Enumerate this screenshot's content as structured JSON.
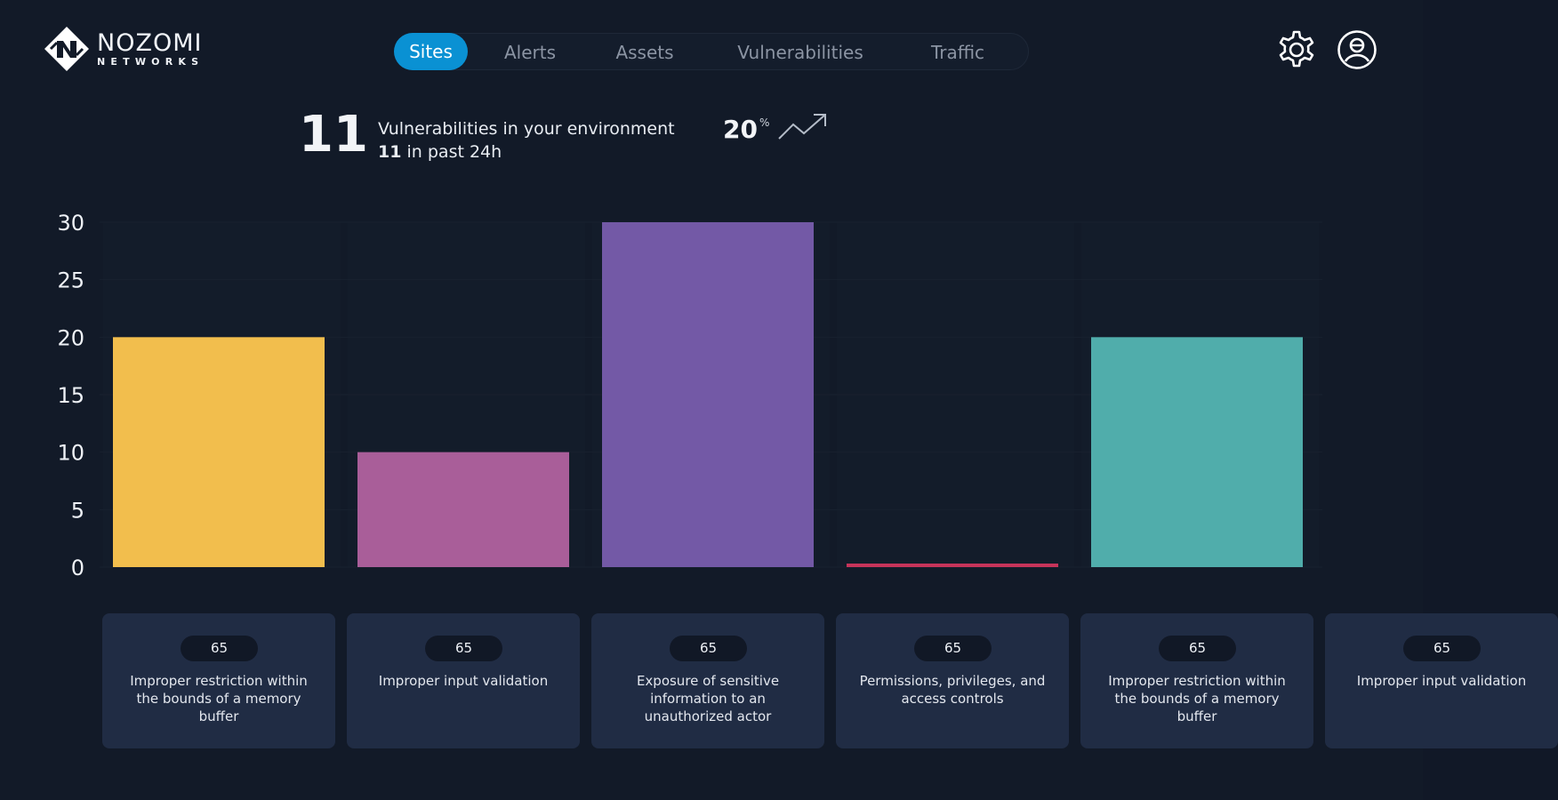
{
  "brand": {
    "name": "NOZOMI",
    "sub": "NETWORKS"
  },
  "nav": {
    "tabs": [
      {
        "label": "Sites",
        "active": true
      },
      {
        "label": "Alerts",
        "active": false
      },
      {
        "label": "Assets",
        "active": false
      },
      {
        "label": "Vulnerabilities",
        "active": false
      },
      {
        "label": "Traffic",
        "active": false
      }
    ]
  },
  "header_icons": {
    "settings": "gear-icon",
    "profile": "user-avatar-icon"
  },
  "summary": {
    "count": "11",
    "title": "Vulnerabilities in your environment",
    "recent_count": "11",
    "recent_text": "in past 24h",
    "change_value": "20",
    "change_unit": "%",
    "trend_icon": "trend-up-icon"
  },
  "chart_data": {
    "type": "bar",
    "categories": [
      "Improper restriction within the bounds of a memory buffer",
      "Improper input validation",
      "Exposure of sensitive information to an unauthorized actor",
      "Permissions, privileges, and access controls",
      "Improper restriction within the bounds of a memory buffer"
    ],
    "values": [
      20,
      10,
      30,
      0.2,
      20
    ],
    "colors": [
      "#f2be4d",
      "#a95e99",
      "#7359a6",
      "#c6345a",
      "#50adab"
    ],
    "ylim": [
      0,
      30
    ],
    "yticks": [
      "0",
      "5",
      "10",
      "15",
      "20",
      "25",
      "30"
    ],
    "xlabel": "",
    "ylabel": "",
    "grid": true
  },
  "cards": [
    {
      "badge": "65",
      "label": "Improper restriction within the bounds of a memory buffer"
    },
    {
      "badge": "65",
      "label": "Improper input validation"
    },
    {
      "badge": "65",
      "label": "Exposure of sensitive information to an unauthorized actor"
    },
    {
      "badge": "65",
      "label": "Permissions, privileges, and access controls"
    },
    {
      "badge": "65",
      "label": "Improper restriction within the bounds of a memory buffer"
    },
    {
      "badge": "65",
      "label": "Improper input validation"
    }
  ],
  "colors": {
    "background": "#121a28",
    "accent": "#0a91d3",
    "card": "#202c44"
  }
}
